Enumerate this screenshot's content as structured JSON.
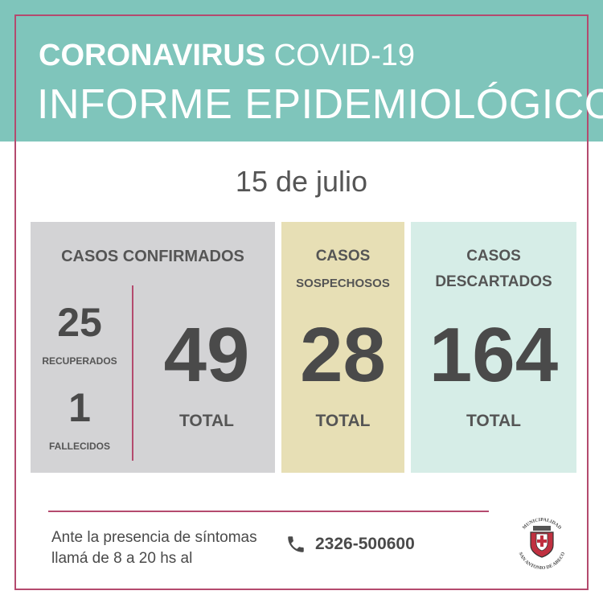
{
  "header": {
    "title_bold": "CORONAVIRUS",
    "title_light": "COVID-19",
    "subtitle": "INFORME EPIDEMIOLÓGICO"
  },
  "date": "15 de julio",
  "confirmed": {
    "title": "CASOS CONFIRMADOS",
    "recovered_value": "25",
    "recovered_label": "RECUPERADOS",
    "deceased_value": "1",
    "deceased_label": "FALLECIDOS",
    "total_value": "49",
    "total_label": "TOTAL"
  },
  "suspected": {
    "title_line1": "CASOS",
    "title_line2": "SOSPECHOSOS",
    "total_value": "28",
    "total_label": "TOTAL"
  },
  "discarded": {
    "title_line1": "CASOS",
    "title_line2": "DESCARTADOS",
    "total_value": "164",
    "total_label": "TOTAL"
  },
  "footer": {
    "line1": "Ante la presencia de síntomas",
    "line2": "llamá de 8 a 20 hs al",
    "phone": "2326-500600",
    "phone_icon": "phone-icon",
    "logo_top": "MUNICIPALIDAD",
    "logo_bottom": "SAN ANTONIO DE ARECO"
  },
  "colors": {
    "header_bg": "#7fc5bb",
    "accent": "#b44a6e",
    "confirmed_bg": "#d3d3d5",
    "suspected_bg": "#e7dfb5",
    "discarded_bg": "#d6ede7"
  }
}
